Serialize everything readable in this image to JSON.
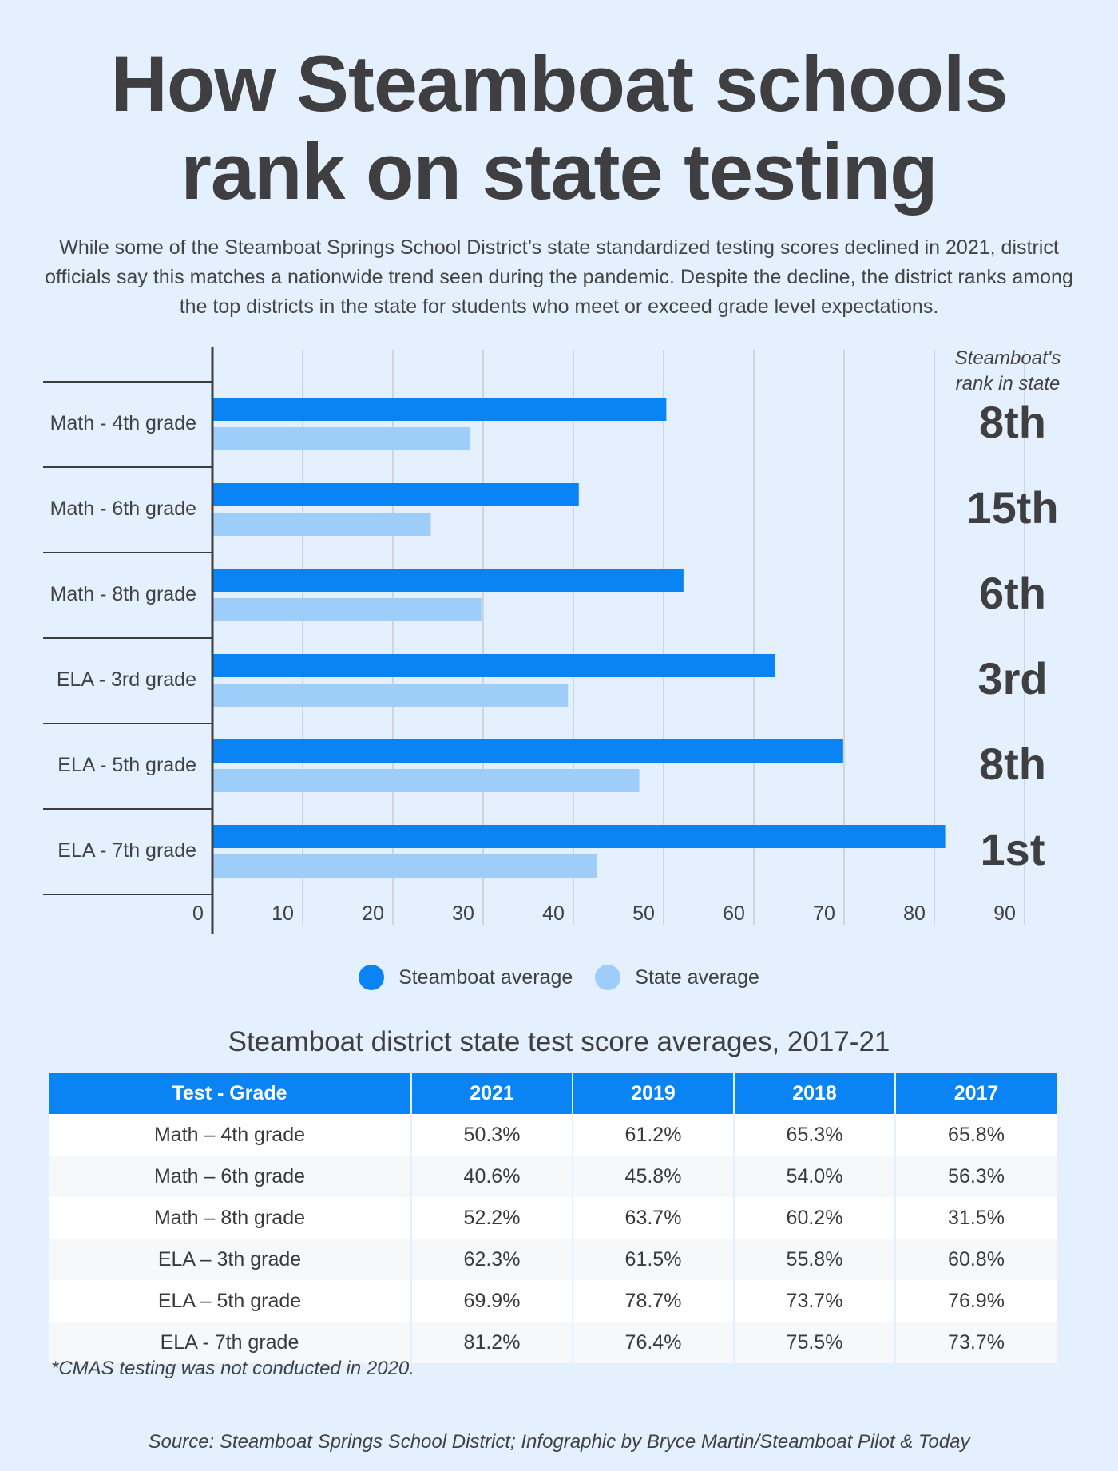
{
  "title_line1": "How Steamboat schools",
  "title_line2": "rank on state testing",
  "intro": "While some of the Steamboat Springs School District’s state standardized testing scores declined in 2021, district officials say this matches a nationwide trend seen during the pandemic. Despite the decline, the district ranks among the top districts in the state for students who meet or exceed grade level expectations.",
  "colors": {
    "steamboat": "#0a84f5",
    "state": "#9fcdfa",
    "text": "#404144",
    "grid": "#c7ccd2",
    "axis": "#3d3d3d"
  },
  "chart_data": {
    "type": "bar",
    "orientation": "horizontal",
    "categories": [
      "Math - 4th grade",
      "Math - 6th grade",
      "Math - 8th grade",
      "ELA - 3rd grade",
      "ELA - 5th grade",
      "ELA - 7th grade"
    ],
    "series": [
      {
        "name": "Steamboat average",
        "values": [
          50.3,
          40.6,
          52.2,
          62.3,
          69.9,
          81.2
        ]
      },
      {
        "name": "State average",
        "values": [
          28.6,
          24.2,
          29.8,
          39.4,
          47.3,
          42.6
        ]
      }
    ],
    "xlim": [
      0,
      90
    ],
    "ticks": [
      0,
      10,
      20,
      30,
      40,
      50,
      60,
      70,
      80,
      90
    ],
    "grid": true,
    "rank_header": [
      "Steamboat's",
      "rank in state"
    ],
    "ranks": [
      "8th",
      "15th",
      "6th",
      "3rd",
      "8th",
      "1st"
    ],
    "legend_position": "bottom-center"
  },
  "legend": {
    "steamboat_label": "Steamboat average",
    "state_label": "State average"
  },
  "table": {
    "title": "Steamboat district state test score averages, 2017-21",
    "headers": [
      "Test - Grade",
      "2021",
      "2019",
      "2018",
      "2017"
    ],
    "rows": [
      [
        "Math – 4th grade",
        "50.3%",
        "61.2%",
        "65.3%",
        "65.8%"
      ],
      [
        "Math – 6th grade",
        "40.6%",
        "45.8%",
        "54.0%",
        "56.3%"
      ],
      [
        "Math – 8th grade",
        "52.2%",
        "63.7%",
        "60.2%",
        "31.5%"
      ],
      [
        "ELA – 3th grade",
        "62.3%",
        "61.5%",
        "55.8%",
        "60.8%"
      ],
      [
        "ELA – 5th grade",
        "69.9%",
        "78.7%",
        "73.7%",
        "76.9%"
      ],
      [
        "ELA - 7th grade",
        "81.2%",
        "76.4%",
        "75.5%",
        "73.7%"
      ]
    ]
  },
  "note": "*CMAS testing was not conducted in 2020.",
  "source": "Source: Steamboat Springs School District; Infographic by Bryce Martin/Steamboat Pilot & Today"
}
